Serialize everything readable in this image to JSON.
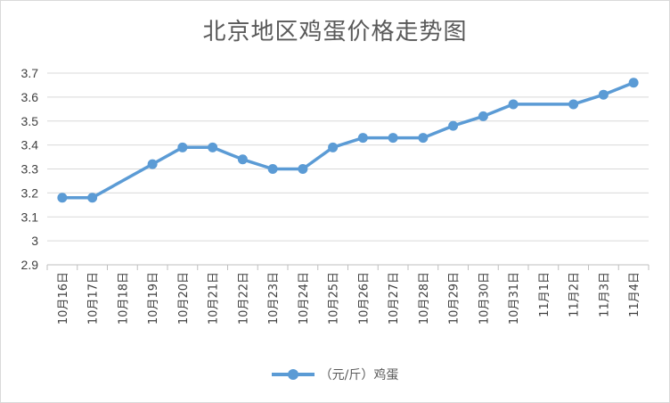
{
  "chart_data": {
    "type": "line",
    "title": "北京地区鸡蛋价格走势图",
    "xlabel": "",
    "ylabel": "",
    "categories": [
      "10月16日",
      "10月17日",
      "10月18日",
      "10月19日",
      "10月20日",
      "10月21日",
      "10月22日",
      "10月23日",
      "10月24日",
      "10月25日",
      "10月26日",
      "10月27日",
      "10月28日",
      "10月29日",
      "10月30日",
      "10月31日",
      "11月1日",
      "11月2日",
      "11月3日",
      "11月4日"
    ],
    "series": [
      {
        "name": "（元/斤）鸡蛋",
        "color": "#5b9bd5",
        "values": [
          3.18,
          3.18,
          null,
          3.32,
          3.39,
          3.39,
          3.34,
          3.3,
          3.3,
          3.39,
          3.43,
          3.43,
          3.43,
          3.48,
          3.52,
          3.57,
          null,
          3.57,
          3.61,
          3.66
        ]
      }
    ],
    "ylim": [
      2.9,
      3.7
    ],
    "yticks": [
      "2.9",
      "3",
      "3.1",
      "3.2",
      "3.3",
      "3.4",
      "3.5",
      "3.6",
      "3.7"
    ],
    "grid": true,
    "legend": "bottom"
  }
}
